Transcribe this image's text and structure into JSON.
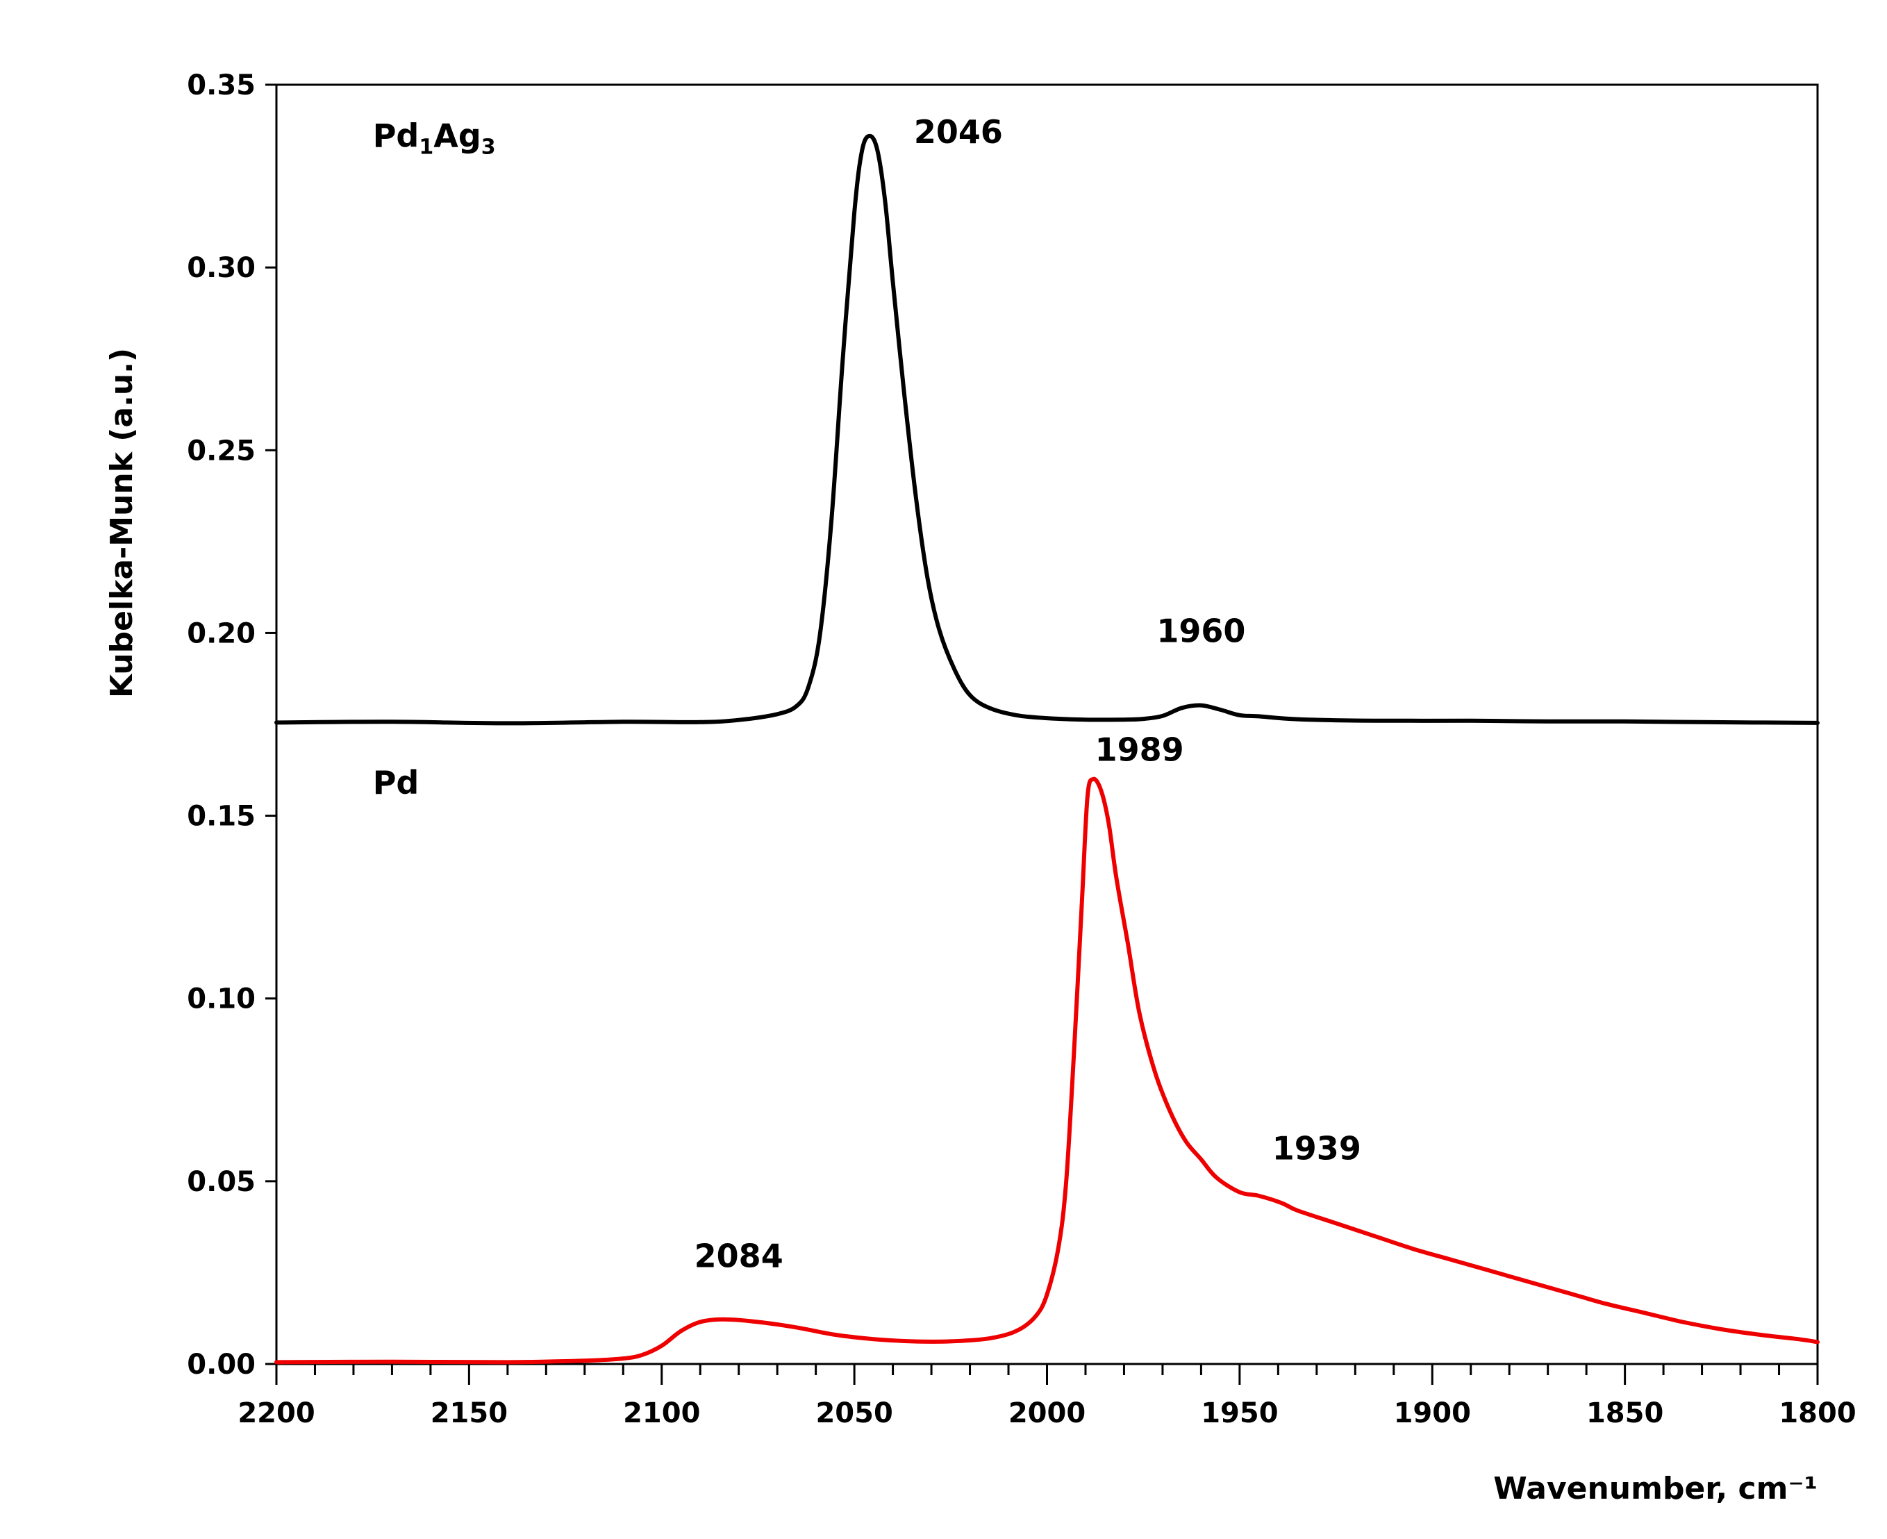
{
  "chart_data": {
    "type": "line",
    "title": "",
    "xlabel": "Wavenumber, cm⁻¹",
    "ylabel": "Kubelka-Munk (a.u.)",
    "xlim": [
      2200,
      1800
    ],
    "ylim": [
      0,
      0.35
    ],
    "x_ticks": [
      "2200",
      "2150",
      "2100",
      "2050",
      "2000",
      "1950",
      "1900",
      "1850",
      "1800"
    ],
    "y_ticks": [
      "0.00",
      "0.05",
      "0.10",
      "0.15",
      "0.20",
      "0.25",
      "0.30",
      "0.35"
    ],
    "grid": false,
    "series": [
      {
        "name": "Pd1Ag3",
        "label": {
          "main": "Pd",
          "sub1": "1",
          "mid": "Ag",
          "sub2": "3"
        },
        "color": "#000000",
        "points": [
          [
            2200,
            0.1755
          ],
          [
            2170,
            0.1757
          ],
          [
            2140,
            0.1753
          ],
          [
            2110,
            0.1757
          ],
          [
            2090,
            0.1756
          ],
          [
            2080,
            0.1762
          ],
          [
            2070,
            0.1778
          ],
          [
            2065,
            0.18
          ],
          [
            2062,
            0.185
          ],
          [
            2059,
            0.199
          ],
          [
            2056,
            0.23
          ],
          [
            2053,
            0.275
          ],
          [
            2050,
            0.315
          ],
          [
            2048,
            0.332
          ],
          [
            2046,
            0.336
          ],
          [
            2044,
            0.332
          ],
          [
            2042,
            0.318
          ],
          [
            2040,
            0.296
          ],
          [
            2037,
            0.265
          ],
          [
            2034,
            0.237
          ],
          [
            2031,
            0.215
          ],
          [
            2028,
            0.201
          ],
          [
            2024,
            0.19
          ],
          [
            2020,
            0.183
          ],
          [
            2015,
            0.1795
          ],
          [
            2008,
            0.1775
          ],
          [
            2000,
            0.1767
          ],
          [
            1990,
            0.1763
          ],
          [
            1980,
            0.1763
          ],
          [
            1975,
            0.1765
          ],
          [
            1970,
            0.1773
          ],
          [
            1965,
            0.1795
          ],
          [
            1960,
            0.1802
          ],
          [
            1955,
            0.179
          ],
          [
            1950,
            0.1775
          ],
          [
            1945,
            0.1772
          ],
          [
            1935,
            0.1764
          ],
          [
            1915,
            0.176
          ],
          [
            1890,
            0.176
          ],
          [
            1870,
            0.1758
          ],
          [
            1850,
            0.1758
          ],
          [
            1830,
            0.1756
          ],
          [
            1800,
            0.1754
          ]
        ]
      },
      {
        "name": "Pd",
        "label": {
          "main": "Pd"
        },
        "color": "#ee0000",
        "points": [
          [
            2200,
            0.0005
          ],
          [
            2170,
            0.0006
          ],
          [
            2140,
            0.0005
          ],
          [
            2120,
            0.0009
          ],
          [
            2110,
            0.0015
          ],
          [
            2105,
            0.0025
          ],
          [
            2100,
            0.005
          ],
          [
            2095,
            0.009
          ],
          [
            2090,
            0.0115
          ],
          [
            2084,
            0.0122
          ],
          [
            2075,
            0.0115
          ],
          [
            2065,
            0.01
          ],
          [
            2055,
            0.008
          ],
          [
            2045,
            0.0068
          ],
          [
            2035,
            0.0062
          ],
          [
            2025,
            0.0062
          ],
          [
            2015,
            0.007
          ],
          [
            2008,
            0.009
          ],
          [
            2003,
            0.013
          ],
          [
            2000,
            0.019
          ],
          [
            1997,
            0.032
          ],
          [
            1995,
            0.05
          ],
          [
            1993,
            0.085
          ],
          [
            1991,
            0.125
          ],
          [
            1989.5,
            0.155
          ],
          [
            1988,
            0.16
          ],
          [
            1986,
            0.157
          ],
          [
            1984,
            0.148
          ],
          [
            1982,
            0.133
          ],
          [
            1979,
            0.115
          ],
          [
            1976,
            0.096
          ],
          [
            1972,
            0.08
          ],
          [
            1968,
            0.069
          ],
          [
            1964,
            0.061
          ],
          [
            1960,
            0.056
          ],
          [
            1956,
            0.051
          ],
          [
            1950,
            0.047
          ],
          [
            1945,
            0.046
          ],
          [
            1939,
            0.044
          ],
          [
            1935,
            0.042
          ],
          [
            1925,
            0.0385
          ],
          [
            1915,
            0.035
          ],
          [
            1905,
            0.0315
          ],
          [
            1895,
            0.0285
          ],
          [
            1885,
            0.0255
          ],
          [
            1875,
            0.0225
          ],
          [
            1865,
            0.0195
          ],
          [
            1855,
            0.0165
          ],
          [
            1845,
            0.014
          ],
          [
            1835,
            0.0115
          ],
          [
            1825,
            0.0095
          ],
          [
            1815,
            0.008
          ],
          [
            1805,
            0.0068
          ],
          [
            1800,
            0.006
          ]
        ]
      }
    ],
    "annotations": [
      {
        "text": "2046",
        "x": 2023,
        "y": 0.334
      },
      {
        "text": "1960",
        "x": 1960,
        "y": 0.1975
      },
      {
        "text": "1989",
        "x": 1976,
        "y": 0.165
      },
      {
        "text": "1939",
        "x": 1930,
        "y": 0.056
      },
      {
        "text": "2084",
        "x": 2080,
        "y": 0.0265
      }
    ],
    "series_labels": [
      {
        "series": "Pd1Ag3",
        "x": 2175,
        "y": 0.333
      },
      {
        "series": "Pd",
        "x": 2175,
        "y": 0.156
      }
    ]
  }
}
